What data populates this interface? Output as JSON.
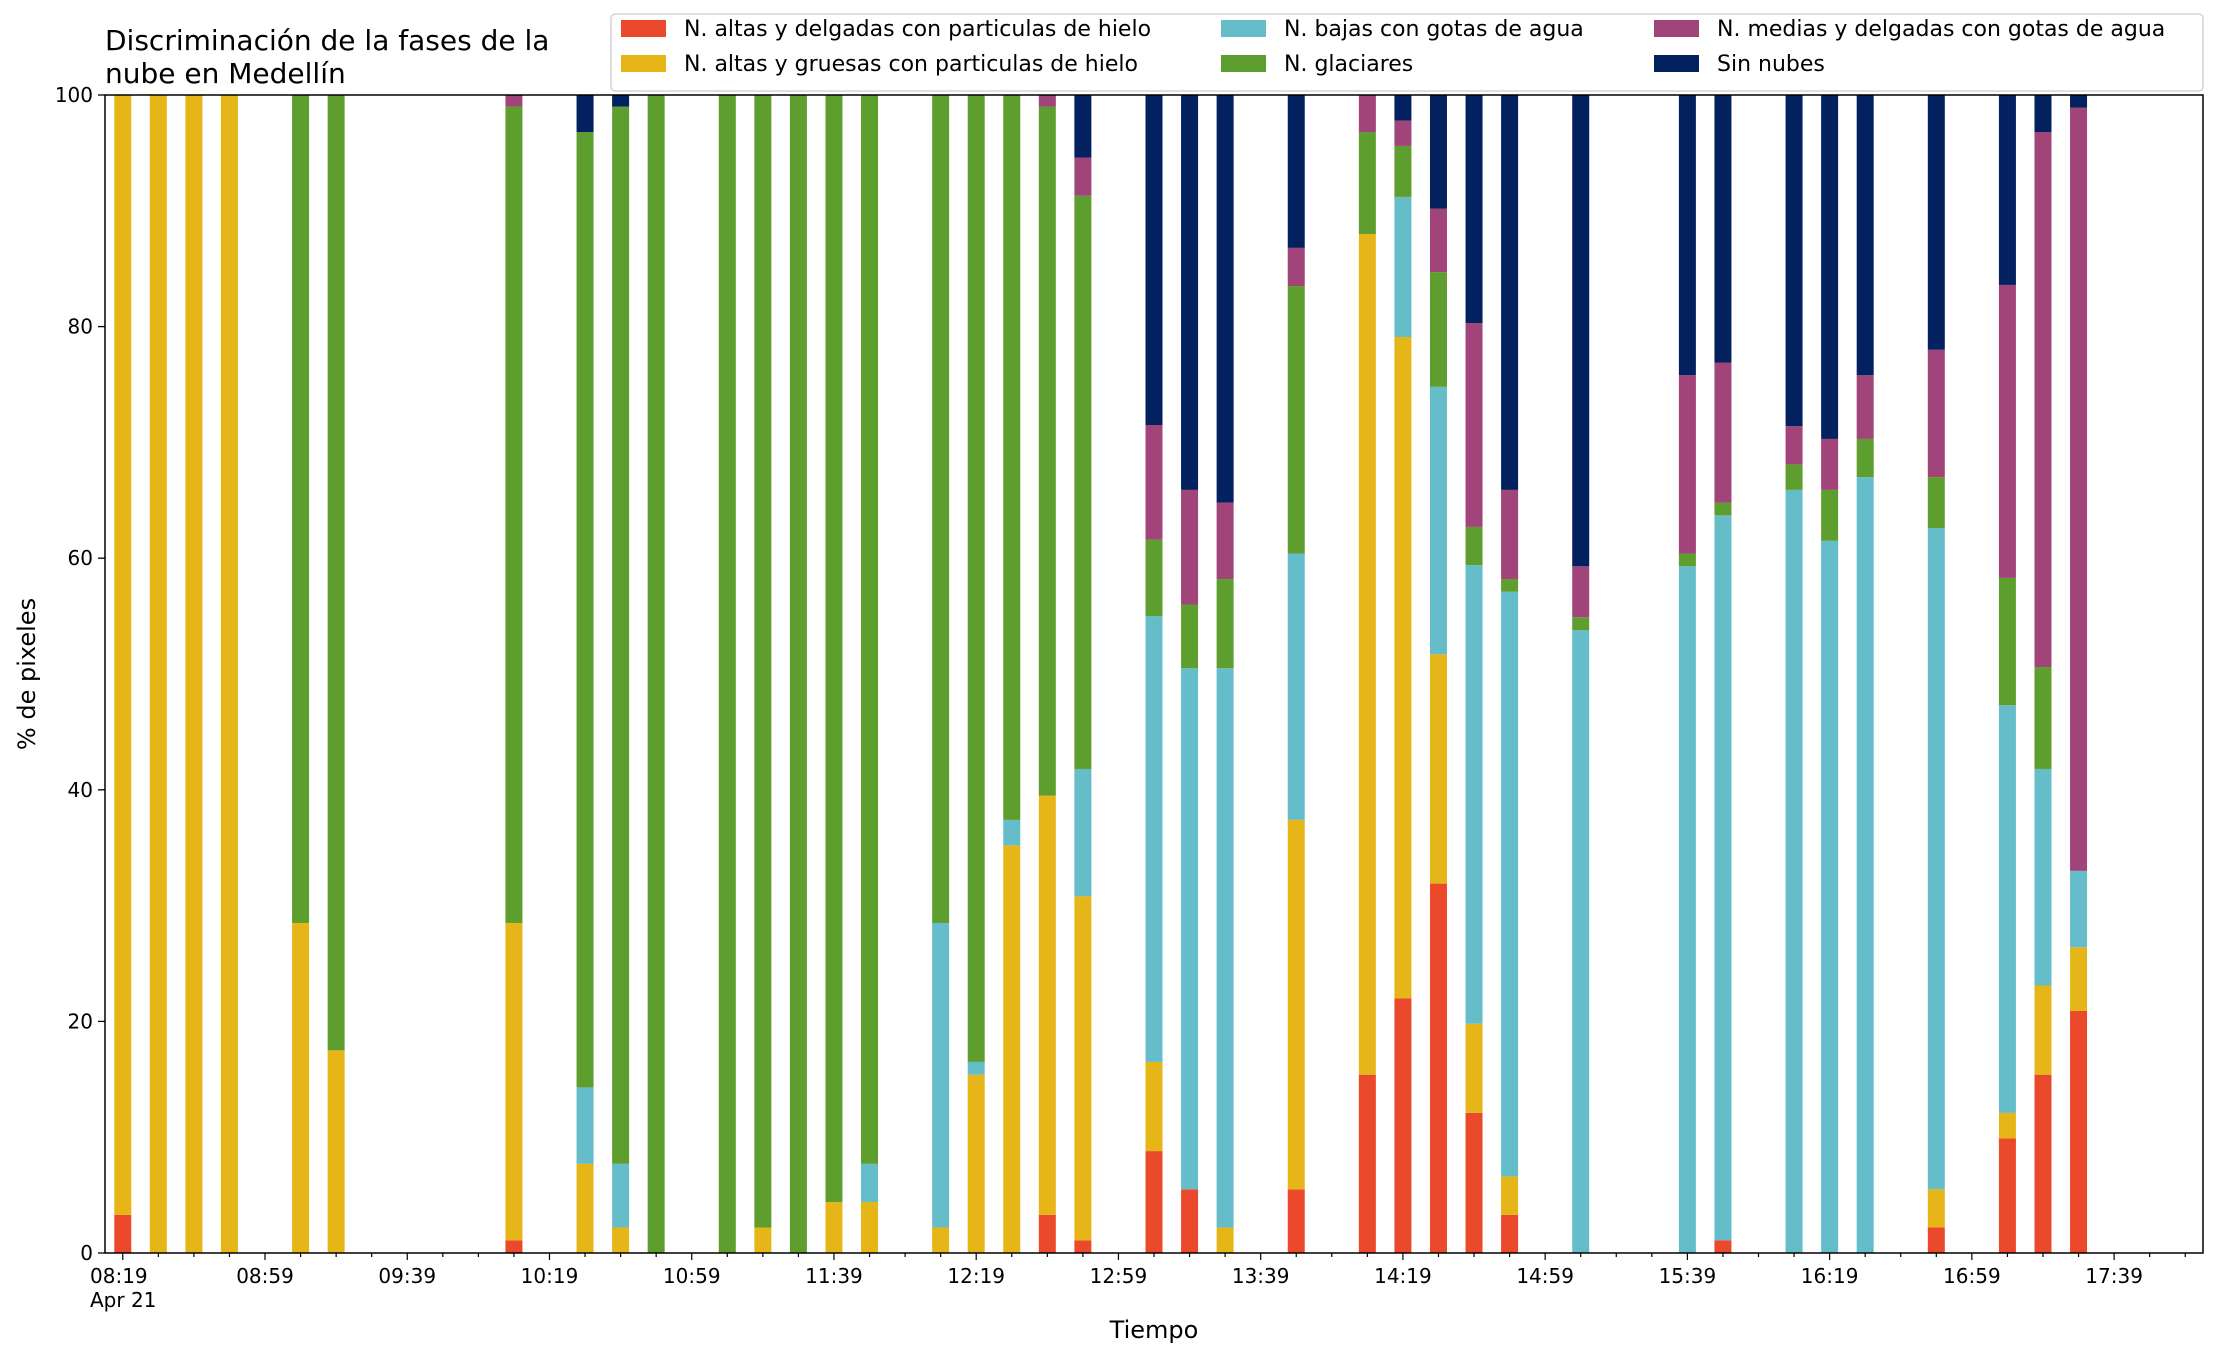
{
  "chart_data": {
    "type": "bar",
    "stacked": true,
    "title": "Discriminación de la fases de la\nnube en Medellín",
    "xlabel": "Tiempo",
    "ylabel": "% de pixeles",
    "ylim": [
      0,
      100
    ],
    "yticks": [
      0,
      20,
      40,
      60,
      80,
      100
    ],
    "x_unit": "minutes after 08:19 on Apr 21",
    "xlim": [
      -5,
      585
    ],
    "xticks": [
      {
        "t": 0,
        "label": "08:19",
        "sublabel": "Apr 21"
      },
      {
        "t": 40,
        "label": "08:59"
      },
      {
        "t": 80,
        "label": "09:39"
      },
      {
        "t": 120,
        "label": "10:19"
      },
      {
        "t": 160,
        "label": "10:59"
      },
      {
        "t": 200,
        "label": "11:39"
      },
      {
        "t": 240,
        "label": "12:19"
      },
      {
        "t": 280,
        "label": "12:59"
      },
      {
        "t": 320,
        "label": "13:39"
      },
      {
        "t": 360,
        "label": "14:19"
      },
      {
        "t": 400,
        "label": "14:59"
      },
      {
        "t": 440,
        "label": "15:39"
      },
      {
        "t": 480,
        "label": "16:19"
      },
      {
        "t": 520,
        "label": "16:59"
      },
      {
        "t": 560,
        "label": "17:39"
      }
    ],
    "legend_position": "top-right",
    "legend_columns": 3,
    "grid": false,
    "series": [
      {
        "name": "N. altas y delgadas con particulas de hielo",
        "color": "#ea4a2b"
      },
      {
        "name": "N. altas y gruesas con particulas de hielo",
        "color": "#e6b619"
      },
      {
        "name": "N. bajas con gotas de agua",
        "color": "#66bdca"
      },
      {
        "name": "N. glaciares",
        "color": "#5e9e2f"
      },
      {
        "name": "N. medias y delgadas con gotas de agua",
        "color": "#a0447a"
      },
      {
        "name": "Sin nubes",
        "color": "#03205f"
      }
    ],
    "bars": [
      {
        "t": 0,
        "values": [
          3.3,
          96.7,
          0,
          0,
          0,
          0
        ]
      },
      {
        "t": 10,
        "values": [
          0,
          100,
          0,
          0,
          0,
          0
        ]
      },
      {
        "t": 20,
        "values": [
          0,
          100,
          0,
          0,
          0,
          0
        ]
      },
      {
        "t": 30,
        "values": [
          0,
          100,
          0,
          0,
          0,
          0
        ]
      },
      {
        "t": 50,
        "values": [
          0,
          28.5,
          0,
          71.5,
          0,
          0
        ]
      },
      {
        "t": 60,
        "values": [
          0,
          17.5,
          0,
          82.5,
          0,
          0
        ]
      },
      {
        "t": 110,
        "values": [
          1.1,
          27.4,
          0,
          70.5,
          1.0,
          0
        ]
      },
      {
        "t": 130,
        "values": [
          0,
          7.7,
          6.6,
          82.5,
          0,
          3.2
        ]
      },
      {
        "t": 140,
        "values": [
          0,
          2.2,
          5.5,
          91.3,
          0,
          1.0
        ]
      },
      {
        "t": 150,
        "values": [
          0,
          0,
          0,
          100,
          0,
          0
        ]
      },
      {
        "t": 170,
        "values": [
          0,
          0,
          0,
          100,
          0,
          0
        ]
      },
      {
        "t": 180,
        "values": [
          0,
          2.2,
          0,
          97.8,
          0,
          0
        ]
      },
      {
        "t": 190,
        "values": [
          0,
          0,
          0,
          100,
          0,
          0
        ]
      },
      {
        "t": 200,
        "values": [
          0,
          4.4,
          0,
          95.6,
          0,
          0
        ]
      },
      {
        "t": 210,
        "values": [
          0,
          4.4,
          3.3,
          92.3,
          0,
          0
        ]
      },
      {
        "t": 230,
        "values": [
          0,
          2.2,
          26.3,
          71.5,
          0,
          0
        ]
      },
      {
        "t": 240,
        "values": [
          0,
          15.4,
          1.1,
          83.5,
          0,
          0
        ]
      },
      {
        "t": 250,
        "values": [
          0,
          35.2,
          2.2,
          62.6,
          0,
          0
        ]
      },
      {
        "t": 260,
        "values": [
          3.3,
          36.2,
          0,
          59.5,
          1.0,
          0
        ]
      },
      {
        "t": 270,
        "values": [
          1.1,
          29.7,
          11.0,
          49.5,
          3.3,
          5.4
        ]
      },
      {
        "t": 290,
        "values": [
          8.8,
          7.7,
          38.5,
          6.6,
          9.9,
          28.5
        ]
      },
      {
        "t": 300,
        "values": [
          5.5,
          0,
          45.0,
          5.5,
          9.9,
          34.1
        ]
      },
      {
        "t": 310,
        "values": [
          0,
          2.2,
          48.3,
          7.7,
          6.6,
          35.2
        ]
      },
      {
        "t": 330,
        "values": [
          5.5,
          31.9,
          23.0,
          23.1,
          3.3,
          13.2
        ]
      },
      {
        "t": 350,
        "values": [
          15.4,
          72.6,
          0,
          8.8,
          3.2,
          0
        ]
      },
      {
        "t": 360,
        "values": [
          22.0,
          57.1,
          12.1,
          4.4,
          2.2,
          2.2
        ]
      },
      {
        "t": 370,
        "values": [
          31.9,
          19.8,
          23.1,
          9.9,
          5.5,
          9.8
        ]
      },
      {
        "t": 380,
        "values": [
          12.1,
          7.7,
          39.6,
          3.3,
          17.6,
          19.7
        ]
      },
      {
        "t": 390,
        "values": [
          3.3,
          3.3,
          50.5,
          1.1,
          7.7,
          34.1
        ]
      },
      {
        "t": 410,
        "values": [
          0,
          0,
          53.8,
          1.1,
          4.4,
          40.7
        ]
      },
      {
        "t": 440,
        "values": [
          0,
          0,
          59.3,
          1.1,
          15.4,
          24.2
        ]
      },
      {
        "t": 450,
        "values": [
          1.1,
          0,
          62.6,
          1.1,
          12.1,
          23.1
        ]
      },
      {
        "t": 470,
        "values": [
          0,
          0,
          65.9,
          2.2,
          3.3,
          28.6
        ]
      },
      {
        "t": 480,
        "values": [
          0,
          0,
          61.5,
          4.4,
          4.4,
          29.7
        ]
      },
      {
        "t": 490,
        "values": [
          0,
          0,
          67.0,
          3.3,
          5.5,
          24.2
        ]
      },
      {
        "t": 510,
        "values": [
          2.2,
          3.3,
          57.1,
          4.4,
          11.0,
          22.0
        ]
      },
      {
        "t": 530,
        "values": [
          9.9,
          2.2,
          35.2,
          11.0,
          25.3,
          16.4
        ]
      },
      {
        "t": 540,
        "values": [
          15.4,
          7.7,
          18.7,
          8.8,
          46.2,
          3.2
        ]
      },
      {
        "t": 550,
        "values": [
          20.9,
          5.5,
          6.6,
          0,
          65.9,
          1.1
        ]
      }
    ]
  }
}
